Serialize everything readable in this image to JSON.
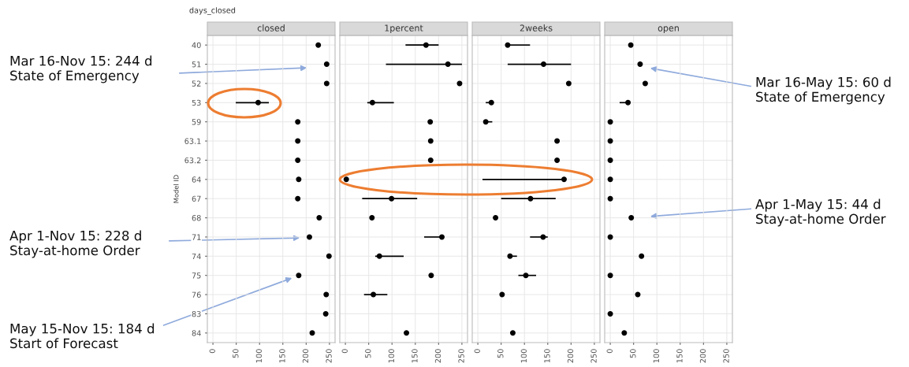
{
  "chart_data": [
    {
      "type": "scatter",
      "orientation": "horizontal",
      "title": "closed",
      "ylabel": "Model ID",
      "annotations": [
        "days_closed",
        "Mar 16-Nov 15: 244 d\nState of Emergency",
        "Apr 1-Nov 15: 228 d\nStay-at-home Order",
        "May 15-Nov 15: 184 d\nStart of Forecast"
      ],
      "categories": [
        "40",
        "51",
        "52",
        "53",
        "59",
        "63.1",
        "63.2",
        "64",
        "67",
        "68",
        "71",
        "74",
        "75",
        "76",
        "83",
        "84"
      ],
      "values": [
        226,
        244,
        244,
        97,
        182,
        182,
        182,
        184,
        182,
        228,
        207,
        249,
        184,
        243,
        242,
        213
      ],
      "errors": [
        null,
        null,
        null,
        [
          49,
          120
        ],
        null,
        null,
        null,
        null,
        null,
        null,
        null,
        null,
        null,
        null,
        null,
        null
      ],
      "color": "#000000",
      "marker": "circle",
      "grid": true,
      "xlim": [
        -12,
        262
      ],
      "xticks": [
        0,
        50,
        100,
        150,
        200,
        250
      ]
    },
    {
      "type": "scatter",
      "orientation": "horizontal",
      "title": "1percent",
      "tick_labels": "x",
      "categories": [
        "40",
        "51",
        "52",
        "53",
        "59",
        "63.1",
        "63.2",
        "64",
        "67",
        "68",
        "71",
        "74",
        "75",
        "76",
        "83",
        "84"
      ],
      "values": [
        173,
        220,
        245,
        58,
        182,
        183,
        183,
        2,
        99,
        57,
        207,
        73,
        184,
        60,
        null,
        131
      ],
      "errors": [
        [
          129,
          200
        ],
        [
          87,
          250
        ],
        null,
        [
          47,
          104
        ],
        null,
        null,
        null,
        null,
        [
          36,
          154
        ],
        null,
        [
          169,
          211
        ],
        [
          64,
          125
        ],
        null,
        [
          40,
          90
        ],
        null,
        null
      ],
      "color": "#000000",
      "marker": "circle",
      "grid": true,
      "xlim": [
        -12,
        262
      ],
      "xticks": [
        0,
        50,
        100,
        150,
        200,
        250
      ]
    },
    {
      "type": "scatter",
      "orientation": "horizontal",
      "title": "2weeks",
      "tick_labels": "x",
      "categories": [
        "40",
        "51",
        "52",
        "53",
        "59",
        "63.1",
        "63.2",
        "64",
        "67",
        "68",
        "71",
        "74",
        "75",
        "76",
        "83",
        "84"
      ],
      "values": [
        64,
        141,
        195,
        29,
        17,
        170,
        170,
        185,
        113,
        38,
        140,
        69,
        103,
        52,
        null,
        75
      ],
      "errors": [
        [
          64,
          112
        ],
        [
          64,
          200
        ],
        null,
        [
          17,
          34
        ],
        [
          13,
          31
        ],
        null,
        null,
        [
          10,
          188
        ],
        [
          50,
          167
        ],
        null,
        [
          112,
          150
        ],
        [
          67,
          84
        ],
        [
          87,
          125
        ],
        null,
        null,
        null
      ],
      "color": "#000000",
      "marker": "circle",
      "grid": true,
      "xlim": [
        -12,
        262
      ],
      "xticks": [
        0,
        50,
        100,
        150,
        200,
        250
      ]
    },
    {
      "type": "scatter",
      "orientation": "horizontal",
      "title": "open",
      "tick_labels": "x",
      "annotations": [
        "Mar 16-May 15: 60 d\nState of Emergency",
        "Apr 1-May 15: 44 d\nStay-at-home Order"
      ],
      "categories": [
        "40",
        "51",
        "52",
        "53",
        "59",
        "63.1",
        "63.2",
        "64",
        "67",
        "68",
        "71",
        "74",
        "75",
        "76",
        "83",
        "84"
      ],
      "values": [
        44,
        64,
        75,
        38,
        0,
        0,
        0,
        0,
        0,
        45,
        0,
        67,
        0,
        59,
        0,
        30
      ],
      "errors": [
        null,
        null,
        null,
        [
          20,
          42
        ],
        null,
        null,
        null,
        null,
        null,
        null,
        null,
        null,
        null,
        null,
        null,
        null
      ],
      "color": "#000000",
      "marker": "circle",
      "grid": true,
      "xlim": [
        -12,
        262
      ],
      "xticks": [
        0,
        50,
        100,
        150,
        200,
        250
      ]
    }
  ]
}
